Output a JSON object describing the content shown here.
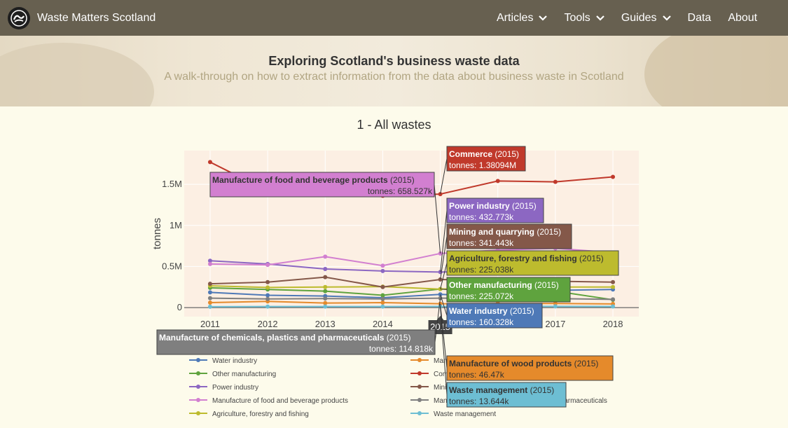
{
  "nav": {
    "brand": "Waste Matters Scotland",
    "items": [
      {
        "label": "Articles",
        "dropdown": true
      },
      {
        "label": "Tools",
        "dropdown": true
      },
      {
        "label": "Guides",
        "dropdown": true
      },
      {
        "label": "Data",
        "dropdown": false
      },
      {
        "label": "About",
        "dropdown": false
      }
    ]
  },
  "hero": {
    "title": "Exploring Scotland's business waste data",
    "subtitle": "A walk-through on how to extract information from the data about business waste in Scotland"
  },
  "section_heading": "1 - All wastes",
  "chart_data": {
    "type": "line",
    "title": "",
    "xlabel": "",
    "ylabel": "tonnes",
    "x": [
      2011,
      2012,
      2013,
      2014,
      2015,
      2016,
      2017,
      2018
    ],
    "xlim": [
      2010.55,
      2018.45
    ],
    "ylim": [
      -110000,
      1910000
    ],
    "yticks": [
      0,
      500000,
      1000000,
      1500000
    ],
    "ytick_labels": [
      "0",
      "0.5M",
      "1M",
      "1.5M"
    ],
    "hover_year_label": "2015",
    "hover_year": 2015,
    "grid": true,
    "legend_position": "bottom",
    "series": [
      {
        "name": "Water industry",
        "color": "#4e79b7",
        "values": [
          185000,
          150000,
          140000,
          120000,
          160328,
          140000,
          210000,
          220000
        ]
      },
      {
        "name": "Other manufacturing",
        "color": "#5fa33e",
        "values": [
          240000,
          220000,
          200000,
          150000,
          225072,
          250000,
          200000,
          95000
        ]
      },
      {
        "name": "Power industry",
        "color": "#8c67c2",
        "values": [
          570000,
          530000,
          470000,
          445000,
          432773,
          440000,
          440000,
          430000
        ]
      },
      {
        "name": "Manufacture of food and beverage products",
        "color": "#d27fd0",
        "values": [
          530000,
          520000,
          620000,
          510000,
          658527,
          700000,
          720000,
          670000
        ]
      },
      {
        "name": "Agriculture, forestry and fishing",
        "color": "#bdbb2e",
        "values": [
          265000,
          245000,
          250000,
          255000,
          225038,
          240000,
          250000,
          250000
        ]
      },
      {
        "name": "Manufacture of wood products",
        "color": "#e58a2b",
        "values": [
          60000,
          75000,
          55000,
          60000,
          46470,
          50000,
          50000,
          45000
        ]
      },
      {
        "name": "Commerce",
        "color": "#c0392b",
        "values": [
          1770000,
          1420000,
          1380000,
          1360000,
          1380940,
          1540000,
          1530000,
          1590000
        ]
      },
      {
        "name": "Mining and quarrying",
        "color": "#845849",
        "values": [
          290000,
          310000,
          370000,
          250000,
          341443,
          330000,
          320000,
          310000
        ]
      },
      {
        "name": "Manufacture of chemicals, plastics and pharmaceuticals",
        "color": "#7f7f7f",
        "values": [
          115000,
          105000,
          110000,
          105000,
          114818,
          110000,
          110000,
          100000
        ]
      },
      {
        "name": "Waste management",
        "color": "#6dbed3",
        "values": [
          10000,
          12000,
          12000,
          12000,
          13644,
          14000,
          15000,
          14000
        ]
      }
    ],
    "hover_labels": [
      {
        "series": "Commerce",
        "year": "(2015)",
        "value": "tonnes: 1.38094M"
      },
      {
        "series": "Manufacture of food and beverage products",
        "year": "(2015)",
        "value": "tonnes: 658.527k"
      },
      {
        "series": "Power industry",
        "year": "(2015)",
        "value": "tonnes: 432.773k"
      },
      {
        "series": "Mining and quarrying",
        "year": "(2015)",
        "value": "tonnes: 341.443k"
      },
      {
        "series": "Agriculture, forestry and fishing",
        "year": "(2015)",
        "value": "tonnes: 225.038k"
      },
      {
        "series": "Other manufacturing",
        "year": "(2015)",
        "value": "tonnes: 225.072k"
      },
      {
        "series": "Water industry",
        "year": "(2015)",
        "value": "tonnes: 160.328k"
      },
      {
        "series": "Manufacture of chemicals, plastics and pharmaceuticals",
        "year": "(2015)",
        "value": "tonnes: 114.818k"
      },
      {
        "series": "Manufacture of wood products",
        "year": "(2015)",
        "value": "tonnes: 46.47k"
      },
      {
        "series": "Waste management",
        "year": "(2015)",
        "value": "tonnes: 13.644k"
      }
    ]
  }
}
